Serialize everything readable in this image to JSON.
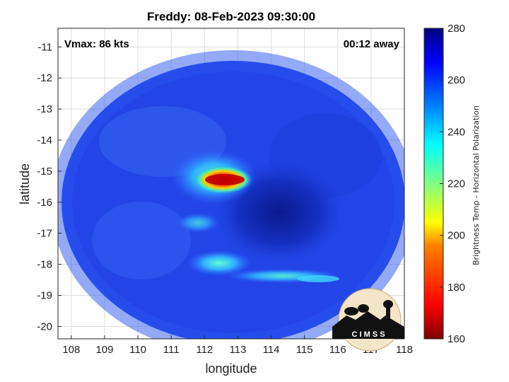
{
  "title": "Freddy: 08-Feb-2023 09:30:00",
  "annotations": {
    "vmax": "Vmax: 86 kts",
    "away": "00:12 away"
  },
  "axes": {
    "xlabel": "longitude",
    "ylabel": "latitude",
    "xticks": [
      "108",
      "109",
      "110",
      "111",
      "112",
      "113",
      "114",
      "115",
      "116",
      "117",
      "118"
    ],
    "yticks": [
      "-11",
      "-12",
      "-13",
      "-14",
      "-15",
      "-16",
      "-17",
      "-18",
      "-19",
      "-20"
    ],
    "xlim": [
      107.6,
      118
    ],
    "ylim": [
      -20.4,
      -10.4
    ]
  },
  "colorbar": {
    "label": "Brightness Temp - Horizontal Polarization",
    "ticks": [
      "280",
      "260",
      "240",
      "220",
      "200",
      "180",
      "160"
    ],
    "range": [
      160,
      280
    ],
    "colormap": "jet",
    "colors": [
      "#7f0000",
      "#ff0000",
      "#ff8000",
      "#ffff00",
      "#80ff80",
      "#00ffff",
      "#0080ff",
      "#0000ff",
      "#00007f"
    ]
  },
  "swath": {
    "center_lon": 112.85,
    "center_lat": -15.9,
    "background_color": "#1f3fe0",
    "eye_color": "#0b1fa0"
  },
  "logo": {
    "text": "C I M S S"
  }
}
